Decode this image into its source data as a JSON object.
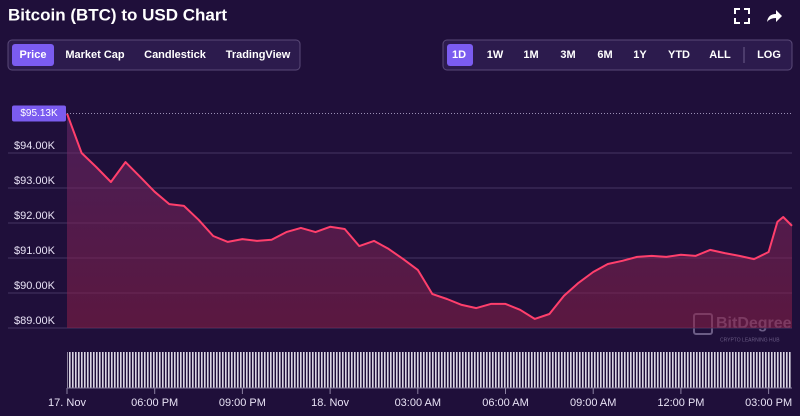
{
  "header": {
    "title": "Bitcoin (BTC) to USD Chart"
  },
  "tabs": [
    "Price",
    "Market Cap",
    "Candlestick",
    "TradingView"
  ],
  "ranges": [
    "1D",
    "1W",
    "1M",
    "3M",
    "6M",
    "1Y",
    "YTD",
    "ALL"
  ],
  "scale_toggle": "LOG",
  "watermark": {
    "name": "BitDegree",
    "tagline": "CRYPTO LEARNING HUB"
  },
  "chart_data": {
    "type": "line",
    "x": [
      15,
      15.5,
      16,
      16.5,
      17,
      17.5,
      18,
      18.5,
      19,
      19.5,
      20,
      20.5,
      21,
      21.5,
      22,
      22.5,
      23,
      23.5,
      24,
      24.5,
      25,
      25.5,
      26,
      26.5,
      27,
      27.5,
      28,
      28.5,
      29,
      29.5,
      30,
      30.5,
      31,
      31.5,
      32,
      32.5,
      33,
      33.5,
      34,
      34.5,
      35,
      35.5,
      36,
      36.5,
      37,
      37.5,
      38,
      38.5,
      39,
      39.3,
      39.5,
      39.8
    ],
    "values": [
      95.13,
      94.0,
      93.6,
      93.17,
      93.74,
      93.32,
      92.89,
      92.54,
      92.49,
      92.09,
      91.63,
      91.46,
      91.54,
      91.49,
      91.52,
      91.74,
      91.86,
      91.74,
      91.89,
      91.83,
      91.34,
      91.49,
      91.26,
      90.97,
      90.66,
      89.97,
      89.83,
      89.66,
      89.57,
      89.69,
      89.69,
      89.52,
      89.26,
      89.4,
      89.92,
      90.29,
      90.6,
      90.83,
      90.92,
      91.03,
      91.06,
      91.03,
      91.09,
      91.06,
      91.23,
      91.14,
      91.06,
      90.97,
      91.17,
      92.03,
      92.17,
      91.92
    ],
    "color": "#ff3f6c",
    "xlim": [
      15,
      39.8
    ],
    "xticks": [
      {
        "value": 15,
        "label": "17. Nov"
      },
      {
        "value": 18,
        "label": "06:00 PM"
      },
      {
        "value": 21,
        "label": "09:00 PM"
      },
      {
        "value": 24,
        "label": "18. Nov"
      },
      {
        "value": 27,
        "label": "03:00 AM"
      },
      {
        "value": 30,
        "label": "06:00 AM"
      },
      {
        "value": 33,
        "label": "09:00 AM"
      },
      {
        "value": 36,
        "label": "12:00 PM"
      },
      {
        "value": 39,
        "label": "03:00 PM"
      }
    ],
    "ylim": [
      88.5,
      96
    ],
    "yticks": [
      {
        "value": 89,
        "label": "$89.00K"
      },
      {
        "value": 90,
        "label": "$90.00K"
      },
      {
        "value": 91,
        "label": "$91.00K"
      },
      {
        "value": 92,
        "label": "$92.00K"
      },
      {
        "value": 93,
        "label": "$93.00K"
      },
      {
        "value": 94,
        "label": "$94.00K"
      }
    ],
    "price_marker": {
      "value": 95.13,
      "label": "$95.13K"
    },
    "grid": true
  }
}
